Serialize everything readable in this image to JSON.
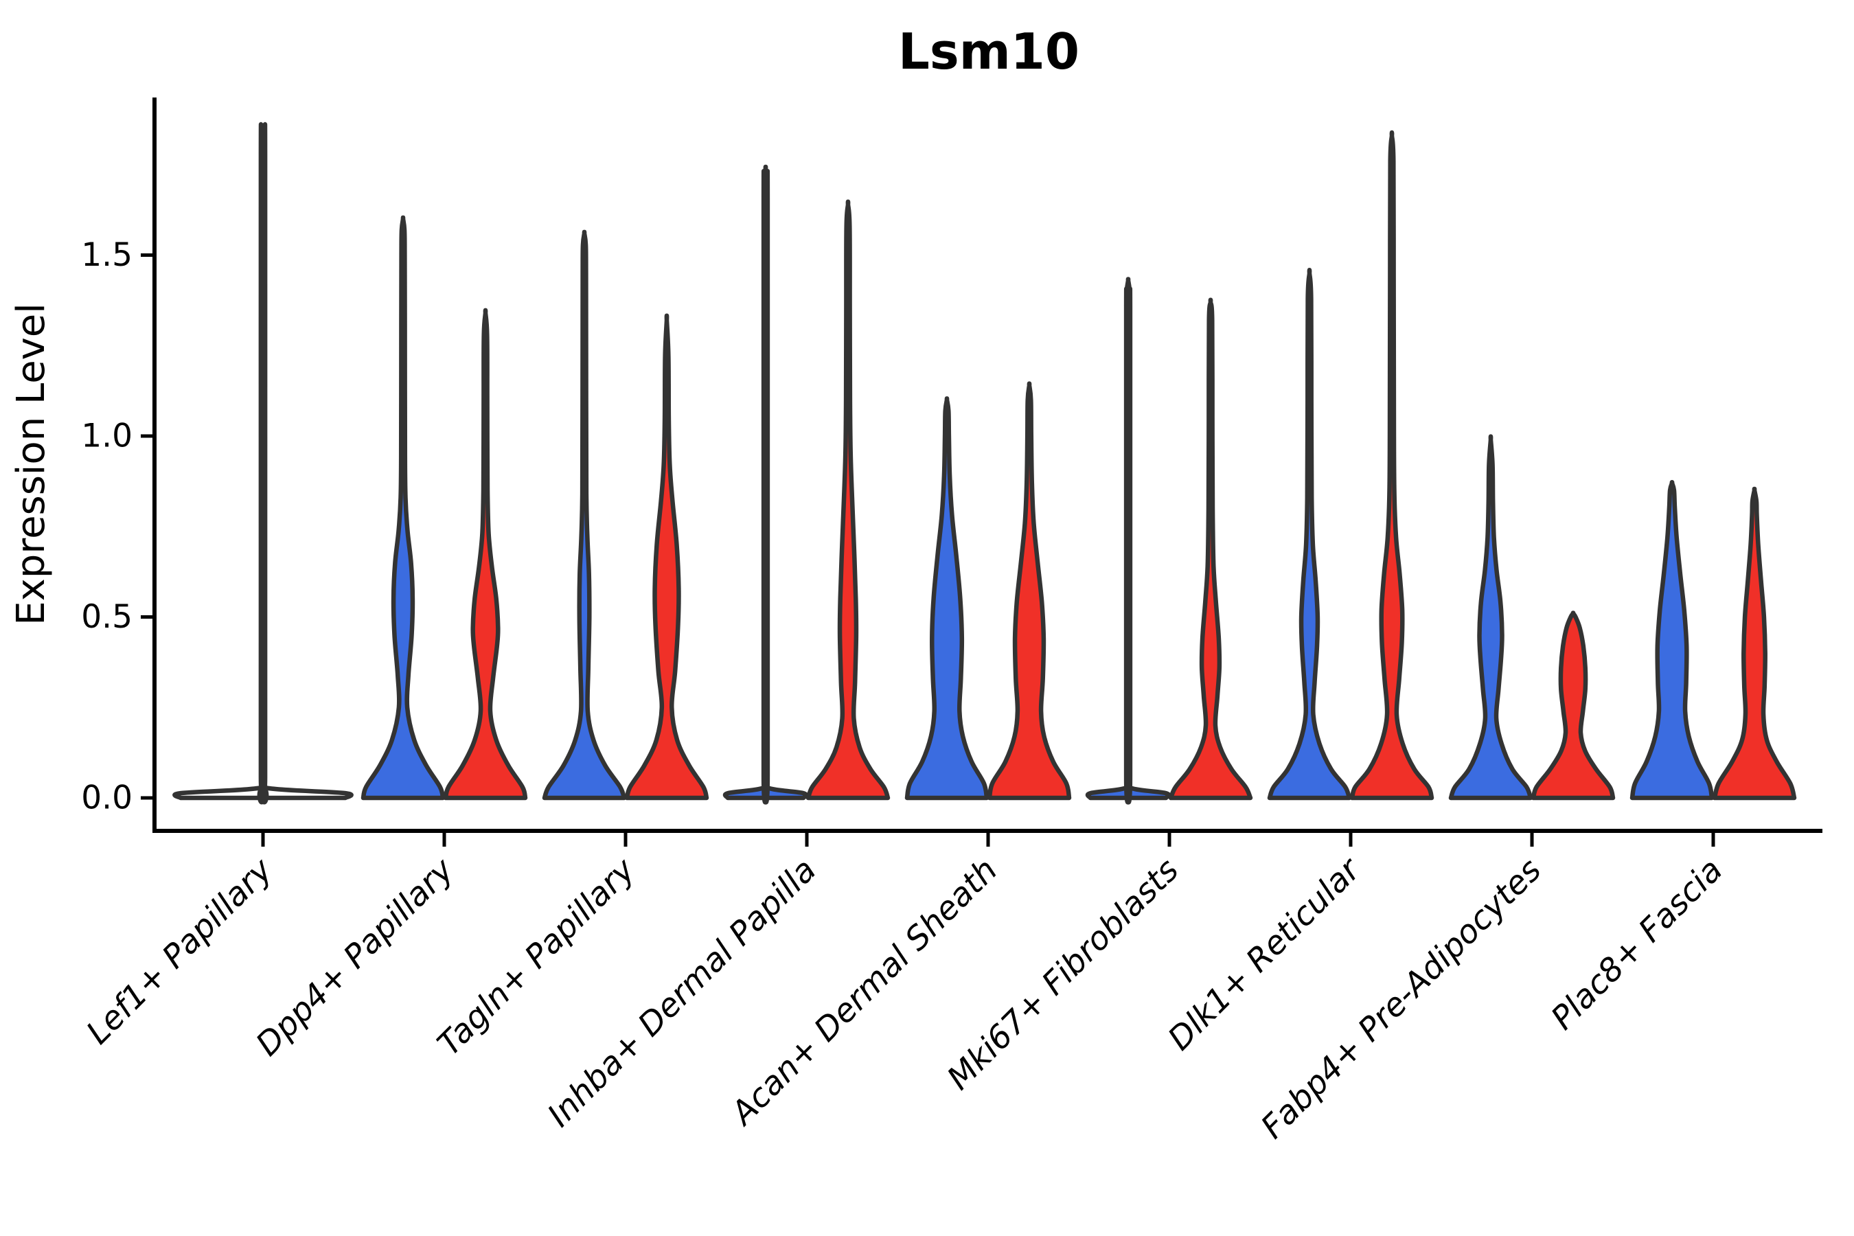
{
  "title": "Lsm10",
  "y_axis": {
    "label": "Expression Level",
    "tick_labels": [
      "0.0",
      "0.5",
      "1.0",
      "1.5"
    ]
  },
  "colors": {
    "blue": "#3B6CE0",
    "red": "#F03028",
    "outline": "#333333",
    "axis": "#000000"
  },
  "chart_data": {
    "type": "violin",
    "title": "Lsm10",
    "ylabel": "Expression Level",
    "ylim": [
      -0.09,
      1.93
    ],
    "yticks": [
      0,
      0.5,
      1.0,
      1.5
    ],
    "ytick_labels": [
      "0.0",
      "0.5",
      "1.0",
      "1.5"
    ],
    "grid": false,
    "legend": null,
    "categories": [
      "Lef1+ Papillary",
      "Dpp4+ Papillary",
      "Tagln+ Papillary",
      "Inhba+ Dermal Papilla",
      "Acan+ Dermal Sheath",
      "Mki67+ Fibroblasts",
      "Dlk1+ Reticular",
      "Fabp4+ Pre-Adipocytes",
      "Plac8+ Fascia"
    ],
    "groups": [
      {
        "name": "blue",
        "color": "#3B6CE0"
      },
      {
        "name": "red",
        "color": "#F03028"
      }
    ],
    "violins": [
      {
        "category": "Lef1+ Papillary",
        "group": "single",
        "color": null,
        "max_expression": 1.85,
        "flat_with_spike": true,
        "profile": [
          [
            0,
            1
          ],
          [
            0.013,
            1
          ],
          [
            0.028,
            0.03
          ],
          [
            0.06,
            0.026
          ],
          [
            0.9,
            0.026
          ],
          [
            1.78,
            0.026
          ],
          [
            1.83,
            0.02
          ],
          [
            1.85,
            0
          ]
        ]
      },
      {
        "category": "Dpp4+ Papillary",
        "group": "blue",
        "color": "#3B6CE0",
        "max_expression": 1.6,
        "flat_with_spike": false,
        "profile": [
          [
            0,
            1
          ],
          [
            0.03,
            0.93
          ],
          [
            0.09,
            0.58
          ],
          [
            0.16,
            0.28
          ],
          [
            0.25,
            0.105
          ],
          [
            0.34,
            0.135
          ],
          [
            0.45,
            0.215
          ],
          [
            0.55,
            0.24
          ],
          [
            0.65,
            0.2
          ],
          [
            0.74,
            0.11
          ],
          [
            0.83,
            0.06
          ],
          [
            0.95,
            0.048
          ],
          [
            1.25,
            0.045
          ],
          [
            1.5,
            0.042
          ],
          [
            1.57,
            0.035
          ],
          [
            1.6,
            0
          ]
        ]
      },
      {
        "category": "Dpp4+ Papillary",
        "group": "red",
        "color": "#F03028",
        "max_expression": 1.34,
        "flat_with_spike": false,
        "profile": [
          [
            0,
            1
          ],
          [
            0.03,
            0.93
          ],
          [
            0.09,
            0.57
          ],
          [
            0.16,
            0.27
          ],
          [
            0.24,
            0.12
          ],
          [
            0.33,
            0.19
          ],
          [
            0.42,
            0.29
          ],
          [
            0.47,
            0.315
          ],
          [
            0.55,
            0.27
          ],
          [
            0.64,
            0.16
          ],
          [
            0.73,
            0.08
          ],
          [
            0.85,
            0.052
          ],
          [
            1.1,
            0.045
          ],
          [
            1.28,
            0.04
          ],
          [
            1.34,
            0
          ]
        ]
      },
      {
        "category": "Tagln+ Papillary",
        "group": "blue",
        "color": "#3B6CE0",
        "max_expression": 1.56,
        "flat_with_spike": false,
        "profile": [
          [
            0,
            1
          ],
          [
            0.03,
            0.9
          ],
          [
            0.09,
            0.52
          ],
          [
            0.16,
            0.23
          ],
          [
            0.24,
            0.085
          ],
          [
            0.36,
            0.1
          ],
          [
            0.5,
            0.125
          ],
          [
            0.62,
            0.115
          ],
          [
            0.72,
            0.075
          ],
          [
            0.84,
            0.05
          ],
          [
            1.1,
            0.045
          ],
          [
            1.45,
            0.042
          ],
          [
            1.53,
            0.035
          ],
          [
            1.56,
            0
          ]
        ]
      },
      {
        "category": "Tagln+ Papillary",
        "group": "red",
        "color": "#F03028",
        "max_expression": 1.32,
        "flat_with_spike": false,
        "profile": [
          [
            0,
            1
          ],
          [
            0.03,
            0.92
          ],
          [
            0.09,
            0.56
          ],
          [
            0.16,
            0.26
          ],
          [
            0.25,
            0.125
          ],
          [
            0.35,
            0.21
          ],
          [
            0.48,
            0.285
          ],
          [
            0.58,
            0.3
          ],
          [
            0.7,
            0.25
          ],
          [
            0.82,
            0.145
          ],
          [
            0.92,
            0.075
          ],
          [
            1.05,
            0.05
          ],
          [
            1.22,
            0.042
          ],
          [
            1.32,
            0
          ]
        ]
      },
      {
        "category": "Inhba+ Dermal Papilla",
        "group": "blue",
        "color": "#3B6CE0",
        "max_expression": 1.74,
        "flat_with_spike": true,
        "profile": [
          [
            0,
            0.95
          ],
          [
            0.013,
            0.95
          ],
          [
            0.028,
            0.055
          ],
          [
            0.06,
            0.05
          ],
          [
            0.9,
            0.05
          ],
          [
            1.66,
            0.05
          ],
          [
            1.71,
            0.04
          ],
          [
            1.74,
            0
          ]
        ]
      },
      {
        "category": "Inhba+ Dermal Papilla",
        "group": "red",
        "color": "#F03028",
        "max_expression": 1.64,
        "flat_with_spike": false,
        "profile": [
          [
            0,
            1
          ],
          [
            0.03,
            0.9
          ],
          [
            0.08,
            0.56
          ],
          [
            0.14,
            0.29
          ],
          [
            0.22,
            0.145
          ],
          [
            0.32,
            0.175
          ],
          [
            0.45,
            0.205
          ],
          [
            0.55,
            0.195
          ],
          [
            0.68,
            0.155
          ],
          [
            0.82,
            0.105
          ],
          [
            0.95,
            0.065
          ],
          [
            1.1,
            0.05
          ],
          [
            1.35,
            0.045
          ],
          [
            1.58,
            0.04
          ],
          [
            1.64,
            0
          ]
        ]
      },
      {
        "category": "Acan+ Dermal Sheath",
        "group": "blue",
        "color": "#3B6CE0",
        "max_expression": 1.1,
        "flat_with_spike": false,
        "profile": [
          [
            0,
            1
          ],
          [
            0.04,
            0.93
          ],
          [
            0.1,
            0.62
          ],
          [
            0.17,
            0.4
          ],
          [
            0.24,
            0.315
          ],
          [
            0.33,
            0.35
          ],
          [
            0.44,
            0.375
          ],
          [
            0.55,
            0.335
          ],
          [
            0.67,
            0.235
          ],
          [
            0.78,
            0.13
          ],
          [
            0.89,
            0.07
          ],
          [
            1.0,
            0.05
          ],
          [
            1.07,
            0.04
          ],
          [
            1.1,
            0
          ]
        ]
      },
      {
        "category": "Acan+ Dermal Sheath",
        "group": "red",
        "color": "#F03028",
        "max_expression": 1.14,
        "flat_with_spike": false,
        "profile": [
          [
            0,
            1
          ],
          [
            0.04,
            0.93
          ],
          [
            0.1,
            0.6
          ],
          [
            0.17,
            0.37
          ],
          [
            0.24,
            0.295
          ],
          [
            0.33,
            0.34
          ],
          [
            0.44,
            0.36
          ],
          [
            0.54,
            0.315
          ],
          [
            0.65,
            0.21
          ],
          [
            0.76,
            0.11
          ],
          [
            0.87,
            0.065
          ],
          [
            1.0,
            0.048
          ],
          [
            1.1,
            0.04
          ],
          [
            1.14,
            0
          ]
        ]
      },
      {
        "category": "Mki67+ Fibroblasts",
        "group": "blue",
        "color": "#3B6CE0",
        "max_expression": 1.43,
        "flat_with_spike": true,
        "profile": [
          [
            0,
            0.95
          ],
          [
            0.013,
            0.95
          ],
          [
            0.028,
            0.055
          ],
          [
            0.06,
            0.05
          ],
          [
            0.9,
            0.05
          ],
          [
            1.36,
            0.05
          ],
          [
            1.4,
            0.04
          ],
          [
            1.43,
            0
          ]
        ]
      },
      {
        "category": "Mki67+ Fibroblasts",
        "group": "red",
        "color": "#F03028",
        "max_expression": 1.37,
        "flat_with_spike": false,
        "profile": [
          [
            0,
            1
          ],
          [
            0.03,
            0.88
          ],
          [
            0.08,
            0.52
          ],
          [
            0.14,
            0.24
          ],
          [
            0.2,
            0.12
          ],
          [
            0.28,
            0.17
          ],
          [
            0.36,
            0.22
          ],
          [
            0.44,
            0.205
          ],
          [
            0.54,
            0.135
          ],
          [
            0.64,
            0.075
          ],
          [
            0.8,
            0.052
          ],
          [
            1.05,
            0.045
          ],
          [
            1.32,
            0.04
          ],
          [
            1.37,
            0
          ]
        ]
      },
      {
        "category": "Dlk1+ Reticular",
        "group": "blue",
        "color": "#3B6CE0",
        "max_expression": 1.45,
        "flat_with_spike": false,
        "profile": [
          [
            0,
            1
          ],
          [
            0.03,
            0.9
          ],
          [
            0.08,
            0.54
          ],
          [
            0.15,
            0.25
          ],
          [
            0.23,
            0.095
          ],
          [
            0.32,
            0.13
          ],
          [
            0.42,
            0.19
          ],
          [
            0.5,
            0.205
          ],
          [
            0.6,
            0.155
          ],
          [
            0.7,
            0.085
          ],
          [
            0.83,
            0.055
          ],
          [
            1.1,
            0.047
          ],
          [
            1.38,
            0.042
          ],
          [
            1.45,
            0
          ]
        ]
      },
      {
        "category": "Dlk1+ Reticular",
        "group": "red",
        "color": "#F03028",
        "max_expression": 1.83,
        "flat_with_spike": false,
        "profile": [
          [
            0,
            1
          ],
          [
            0.03,
            0.92
          ],
          [
            0.08,
            0.56
          ],
          [
            0.15,
            0.27
          ],
          [
            0.23,
            0.12
          ],
          [
            0.33,
            0.185
          ],
          [
            0.43,
            0.25
          ],
          [
            0.52,
            0.26
          ],
          [
            0.62,
            0.195
          ],
          [
            0.72,
            0.105
          ],
          [
            0.85,
            0.06
          ],
          [
            1.1,
            0.05
          ],
          [
            1.45,
            0.045
          ],
          [
            1.76,
            0.04
          ],
          [
            1.83,
            0
          ]
        ]
      },
      {
        "category": "Fabp4+ Pre-Adipocytes",
        "group": "blue",
        "color": "#3B6CE0",
        "max_expression": 0.99,
        "flat_with_spike": false,
        "profile": [
          [
            0,
            1
          ],
          [
            0.03,
            0.9
          ],
          [
            0.08,
            0.54
          ],
          [
            0.15,
            0.27
          ],
          [
            0.22,
            0.14
          ],
          [
            0.3,
            0.195
          ],
          [
            0.38,
            0.255
          ],
          [
            0.45,
            0.285
          ],
          [
            0.54,
            0.245
          ],
          [
            0.63,
            0.145
          ],
          [
            0.72,
            0.08
          ],
          [
            0.82,
            0.055
          ],
          [
            0.92,
            0.045
          ],
          [
            0.99,
            0
          ]
        ]
      },
      {
        "category": "Fabp4+ Pre-Adipocytes",
        "group": "red",
        "color": "#F03028",
        "max_expression": 0.51,
        "flat_with_spike": false,
        "profile": [
          [
            0,
            1
          ],
          [
            0.03,
            0.92
          ],
          [
            0.08,
            0.57
          ],
          [
            0.13,
            0.3
          ],
          [
            0.18,
            0.19
          ],
          [
            0.24,
            0.245
          ],
          [
            0.3,
            0.305
          ],
          [
            0.36,
            0.305
          ],
          [
            0.42,
            0.255
          ],
          [
            0.47,
            0.165
          ],
          [
            0.5,
            0.06
          ],
          [
            0.51,
            0
          ]
        ]
      },
      {
        "category": "Plac8+ Fascia",
        "group": "blue",
        "color": "#3B6CE0",
        "max_expression": 0.87,
        "flat_with_spike": false,
        "profile": [
          [
            0,
            1
          ],
          [
            0.04,
            0.93
          ],
          [
            0.1,
            0.64
          ],
          [
            0.17,
            0.42
          ],
          [
            0.24,
            0.33
          ],
          [
            0.32,
            0.355
          ],
          [
            0.42,
            0.365
          ],
          [
            0.52,
            0.305
          ],
          [
            0.62,
            0.205
          ],
          [
            0.72,
            0.115
          ],
          [
            0.8,
            0.07
          ],
          [
            0.85,
            0.05
          ],
          [
            0.87,
            0
          ]
        ]
      },
      {
        "category": "Plac8+ Fascia",
        "group": "red",
        "color": "#F03028",
        "max_expression": 0.85,
        "flat_with_spike": false,
        "profile": [
          [
            0,
            1
          ],
          [
            0.04,
            0.9
          ],
          [
            0.1,
            0.56
          ],
          [
            0.16,
            0.31
          ],
          [
            0.23,
            0.225
          ],
          [
            0.31,
            0.255
          ],
          [
            0.4,
            0.27
          ],
          [
            0.5,
            0.24
          ],
          [
            0.6,
            0.165
          ],
          [
            0.7,
            0.095
          ],
          [
            0.78,
            0.06
          ],
          [
            0.82,
            0.05
          ],
          [
            0.85,
            0
          ]
        ]
      }
    ]
  }
}
